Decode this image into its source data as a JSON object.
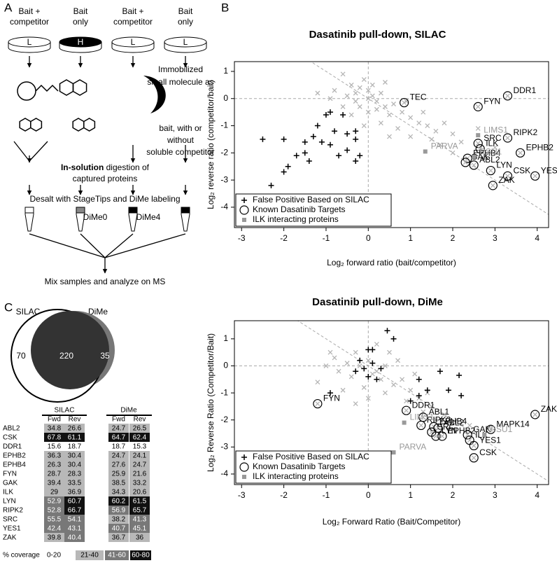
{
  "panel_a": {
    "label": "A",
    "headers": [
      [
        "Bait +",
        "competitor"
      ],
      [
        "Bait",
        "only"
      ],
      [
        "Bait +",
        "competitor"
      ],
      [
        "Bait",
        "only"
      ]
    ],
    "plates": [
      "L",
      "H",
      "L",
      "L"
    ],
    "description": [
      "Immobilized",
      "small molecule as",
      "bait, with or",
      "without",
      "soluble competitor"
    ],
    "digestion": {
      "bold": "In-solution",
      "rest": " digestion of",
      "line2": "captured proteins"
    },
    "desalt": "Desalt with StageTips and DiMe labeling",
    "tubes": [
      "DiMe0",
      "DiMe4"
    ],
    "final": "Mix samples and analyze on MS"
  },
  "panel_b": {
    "label": "B"
  },
  "chart_data": [
    {
      "type": "scatter",
      "title": "Dasatinib pull-down, SILAC",
      "x_label": "Log₂ forward ratio (bait/competitor)",
      "y_label": "Log₂ reverse ratio (competitor/bait)",
      "xlim": [
        -3.17,
        4.27
      ],
      "ylim": [
        -4.75,
        1.36
      ],
      "xticks": [
        -3,
        -2,
        -1,
        0,
        1,
        2,
        3,
        4
      ],
      "yticks": [
        -4,
        -3,
        -2,
        -1,
        0,
        1
      ],
      "grid": false,
      "legend": "lower left",
      "series": [
        {
          "marker": "x",
          "color": "#b5b5b5",
          "x": [
            -0.6,
            -0.4,
            -0.3,
            -0.2,
            -0.1,
            0,
            0.1,
            0.2,
            0.3,
            -0.5,
            -0.8,
            -0.2,
            0,
            0.2,
            0.4,
            0.5,
            0.6,
            0.8,
            1,
            1.2,
            1.4,
            1.6,
            1.8,
            2,
            2.2,
            0.3,
            -0.1,
            -0.4,
            0.7,
            1,
            1.5,
            -0.9,
            -0.3,
            0.1,
            0.4,
            -0.6,
            0.9,
            1.3,
            2.6,
            3,
            2,
            1.7,
            0.5,
            -1.2,
            0
          ],
          "values": [
            0.9,
            0.5,
            0.2,
            0.4,
            0.7,
            0.3,
            0.1,
            -0.1,
            0.2,
            0.1,
            0.3,
            -0.3,
            -0.5,
            -0.4,
            -0.3,
            -0.6,
            -0.2,
            -0.5,
            -0.7,
            -0.9,
            -1,
            -1.2,
            -0.9,
            -1.3,
            -1.6,
            -0.9,
            -1,
            -0.6,
            -1.1,
            -1.4,
            -1.5,
            0,
            -0.1,
            0.5,
            0.6,
            -0.3,
            -0.1,
            -0.5,
            -1.1,
            -1.8,
            -2,
            -1.7,
            -1.4,
            0.2,
            0
          ]
        },
        {
          "name": "False Positive Based on SILAC",
          "marker": "+",
          "color": "#000000",
          "x": [
            -2.5,
            -2,
            -2,
            -1.9,
            -2.3,
            -1.5,
            -1.5,
            -1.3,
            -1.2,
            -1,
            -0.9,
            -0.6,
            -0.8,
            -0.9,
            -0.7,
            -0.5,
            -0.3,
            -0.3,
            -0.2,
            -0.3,
            -1.7,
            -1.4,
            -1.1,
            -0.5
          ],
          "values": [
            -1.5,
            -1.5,
            -2.7,
            -2.5,
            -3.2,
            -1.6,
            -2,
            -1.4,
            -1,
            -0.6,
            -0.5,
            -0.6,
            -1.2,
            -1.7,
            -2.1,
            -1.9,
            -1.2,
            -1.5,
            -2.1,
            -2.3,
            -2.1,
            -2.3,
            -1.6,
            -1.3
          ]
        },
        {
          "name": "Known Dasatinib Targets",
          "marker": "o",
          "color": "#000000",
          "labels": [
            "TEC",
            "FYN",
            "DDR1",
            "RIPK2",
            "EPHB2",
            "SRC",
            "ILK",
            "EPHB4",
            "GAK",
            "ABL2",
            "LYN",
            "CSK",
            "YES1",
            "ZAK"
          ],
          "x": [
            0.85,
            2.6,
            3.3,
            3.3,
            3.6,
            2.6,
            2.65,
            2.35,
            2.3,
            2.5,
            2.9,
            3.3,
            3.95,
            2.95
          ],
          "values": [
            -0.15,
            -0.3,
            0.1,
            -1.45,
            -2,
            -1.65,
            -1.85,
            -2.2,
            -2.35,
            -2.45,
            -2.65,
            -2.85,
            -2.85,
            -3.2
          ]
        },
        {
          "name": "ILK interacting proteins",
          "marker": "square",
          "color": "#999999",
          "labels": [
            "LIMS1",
            "RSU1",
            "PARVA"
          ],
          "x": [
            2.6,
            2.5,
            1.35
          ],
          "values": [
            -1.35,
            -2.15,
            -1.95
          ]
        }
      ]
    },
    {
      "type": "scatter",
      "title": "Dasatinib pull-down, DiMe",
      "x_label": "Log₂ Forward Ratio (Bait/Competitor)",
      "y_label": "Log₂ Reverse Ratio (Competitor/Bait)",
      "xlim": [
        -3.17,
        4.27
      ],
      "ylim": [
        -4.39,
        1.67
      ],
      "xticks": [
        -3,
        -2,
        -1,
        0,
        1,
        2,
        3,
        4
      ],
      "yticks": [
        -4,
        -3,
        -2,
        -1,
        0,
        1
      ],
      "grid": false,
      "legend": "lower left",
      "series": [
        {
          "marker": "x",
          "color": "#b5b5b5",
          "x": [
            -0.8,
            -0.5,
            -0.3,
            -0.2,
            0,
            0.2,
            0.4,
            0.3,
            -0.4,
            -0.7,
            -1,
            -1.2,
            0.6,
            0.8,
            1,
            1.2,
            1.5,
            1.8,
            2.1,
            0.5,
            0.2,
            -0.1,
            0.9,
            1.4,
            1.1,
            0.7,
            -0.6,
            0,
            1.6,
            2.4,
            -0.9,
            0.4,
            1.3,
            -0.3,
            0.1
          ],
          "values": [
            0.3,
            0.1,
            0.5,
            0,
            0.2,
            -0.2,
            0,
            -0.5,
            -0.4,
            -0.2,
            0,
            -0.6,
            -0.7,
            -0.5,
            -0.9,
            -1.2,
            -1.5,
            -1.8,
            -2,
            0.5,
            0.8,
            -0.8,
            -1.3,
            -1,
            -0.3,
            0.2,
            -0.9,
            -1.2,
            -2,
            -2.2,
            0.5,
            -1,
            -1.7,
            -1.4,
            -0.3
          ]
        },
        {
          "name": "False Positive Based on SILAC",
          "marker": "+",
          "color": "#000000",
          "x": [
            0.45,
            0.6,
            0,
            0.1,
            -0.2,
            0.3,
            -0.3,
            0,
            0.2,
            1.2,
            1.7,
            2.15,
            1.4,
            1.9,
            1,
            1.2,
            -0.9,
            2.2,
            -0.1,
            0.1
          ],
          "values": [
            1.3,
            1,
            0.6,
            0.6,
            0.2,
            -0.1,
            -0.2,
            -0.4,
            -0.5,
            -0.5,
            -0.2,
            -0.35,
            -0.9,
            -0.9,
            -1.3,
            -1.1,
            -1,
            -1.1,
            -0.1,
            0.1
          ]
        },
        {
          "name": "Known Dasatinib Targets",
          "marker": "o",
          "color": "#000000",
          "labels": [
            "FYN",
            "DDR1",
            "ABL1",
            "RIPK2",
            "EPHB4",
            "ABL2",
            "SRC",
            "LYN",
            "EPHB2",
            "GAK",
            "MAPK14",
            "ZAK",
            "ILK",
            "YES1",
            "CSK"
          ],
          "x": [
            -1.2,
            0.9,
            1.3,
            1.25,
            1.55,
            1.65,
            1.5,
            1.6,
            1.75,
            2.35,
            2.9,
            3.95,
            2.4,
            2.5,
            2.5
          ],
          "values": [
            -1.4,
            -1.65,
            -1.9,
            -2.2,
            -2.25,
            -2.3,
            -2.45,
            -2.6,
            -2.6,
            -2.55,
            -2.35,
            -1.8,
            -2.75,
            -2.95,
            -3.4
          ]
        },
        {
          "name": "ILK interacting proteins",
          "marker": "square",
          "color": "#999999",
          "labels": [
            "LIMS1",
            "RSU1",
            "PARVA"
          ],
          "x": [
            0.85,
            2.75,
            0.6
          ],
          "values": [
            -2.1,
            -2.55,
            -3.2
          ]
        }
      ]
    }
  ],
  "panel_c": {
    "label": "C",
    "venn": {
      "sets": [
        "SILAC",
        "DiMe"
      ],
      "counts": [
        70,
        220,
        35
      ]
    },
    "table": {
      "groups": [
        "SILAC",
        "DiMe"
      ],
      "columns": [
        "Fwd",
        "Rev",
        "Fwd",
        "Rev"
      ],
      "rows": [
        {
          "name": "ABL2",
          "values": [
            34.8,
            26.6,
            24.7,
            26.5
          ]
        },
        {
          "name": "CSK",
          "values": [
            67.8,
            61.1,
            64.7,
            62.4
          ]
        },
        {
          "name": "DDR1",
          "values": [
            15.6,
            18.7,
            18.7,
            15.3
          ]
        },
        {
          "name": "EPHB2",
          "values": [
            36.3,
            30.4,
            24.7,
            24.1
          ]
        },
        {
          "name": "EPHB4",
          "values": [
            26.3,
            30.4,
            27.6,
            24.7
          ]
        },
        {
          "name": "FYN",
          "values": [
            28.7,
            28.3,
            25.9,
            21.6
          ]
        },
        {
          "name": "GAK",
          "values": [
            39.4,
            33.5,
            38.5,
            33.2
          ]
        },
        {
          "name": "ILK",
          "values": [
            29,
            36.9,
            34.3,
            20.6
          ]
        },
        {
          "name": "LYN",
          "values": [
            52.9,
            60.7,
            60.2,
            61.5
          ]
        },
        {
          "name": "RIPK2",
          "values": [
            52.8,
            66.7,
            56.9,
            65.7
          ]
        },
        {
          "name": "SRC",
          "values": [
            55.5,
            54.1,
            38.2,
            41.3
          ]
        },
        {
          "name": "YES1",
          "values": [
            42.4,
            43.1,
            40.7,
            45.1
          ]
        },
        {
          "name": "ZAK",
          "values": [
            39.8,
            40.4,
            36.7,
            36
          ]
        }
      ],
      "legend_title": "% coverage",
      "legend": [
        {
          "label": "0-20",
          "color": "#ffffff"
        },
        {
          "label": "21-40",
          "color": "#b8b8b8"
        },
        {
          "label": "41-60",
          "color": "#787878"
        },
        {
          "label": "60-80",
          "color": "#111111"
        }
      ]
    }
  }
}
